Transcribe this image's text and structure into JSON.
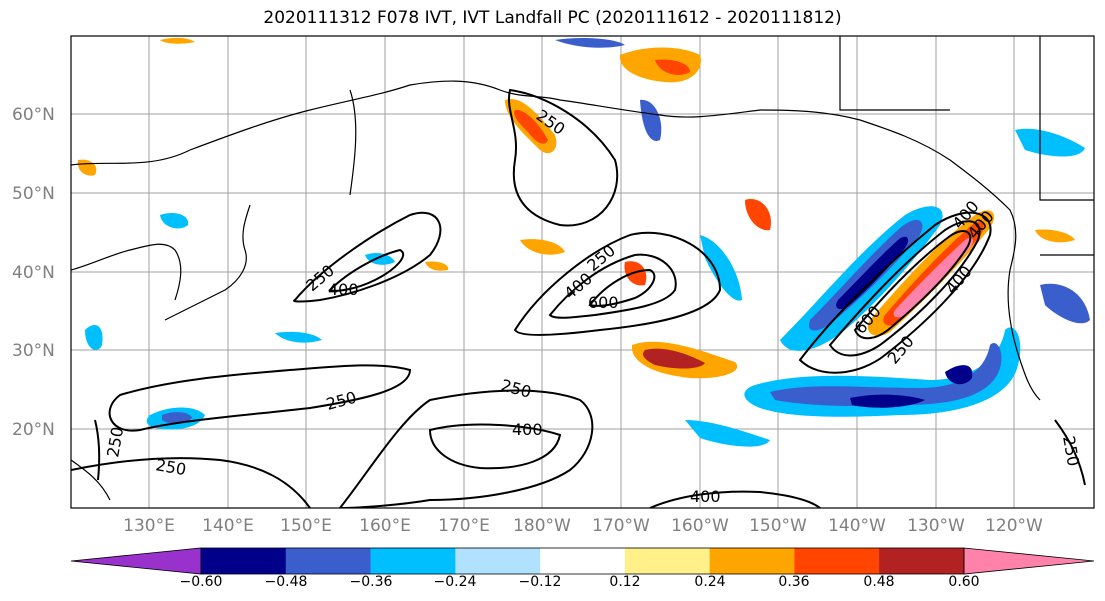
{
  "title": "2020111312 F078 IVT, IVT Landfall PC (2020111612 - 2020111812)",
  "map": {
    "lon_ticks": [
      "130°E",
      "140°E",
      "150°E",
      "160°E",
      "170°E",
      "180°W",
      "170°W",
      "160°W",
      "150°W",
      "140°W",
      "130°W",
      "120°W"
    ],
    "lat_ticks": [
      "60°N",
      "50°N",
      "40°N",
      "30°N",
      "20°N"
    ],
    "contour_labels": [
      "250",
      "400",
      "250",
      "400",
      "600",
      "250",
      "250",
      "400",
      "250",
      "250",
      "400",
      "250",
      "400",
      "600",
      "250",
      "400",
      "400",
      "250"
    ]
  },
  "colorbar": {
    "colors": [
      "#9932cc",
      "#00008b",
      "#3a5fcd",
      "#00bfff",
      "#b0e2ff",
      "#ffffff",
      "#fff08a",
      "#ffa500",
      "#ff4500",
      "#b22222",
      "#ff82ab"
    ],
    "tick_labels": [
      "−0.60",
      "−0.48",
      "−0.36",
      "−0.24",
      "−0.12",
      "0.12",
      "0.24",
      "0.36",
      "0.48",
      "0.60"
    ]
  },
  "chart_data": {
    "type": "map",
    "title": "2020111312 F078 IVT, IVT Landfall PC (2020111612 - 2020111812)",
    "contour_levels": [
      250,
      400,
      600
    ],
    "colorbar_levels": [
      -0.6,
      -0.48,
      -0.36,
      -0.24,
      -0.12,
      0.12,
      0.24,
      0.36,
      0.48,
      0.6
    ],
    "lon_range": [
      "120°E",
      "115°W"
    ],
    "lat_range": [
      "10°N",
      "70°N"
    ],
    "grid": true
  }
}
